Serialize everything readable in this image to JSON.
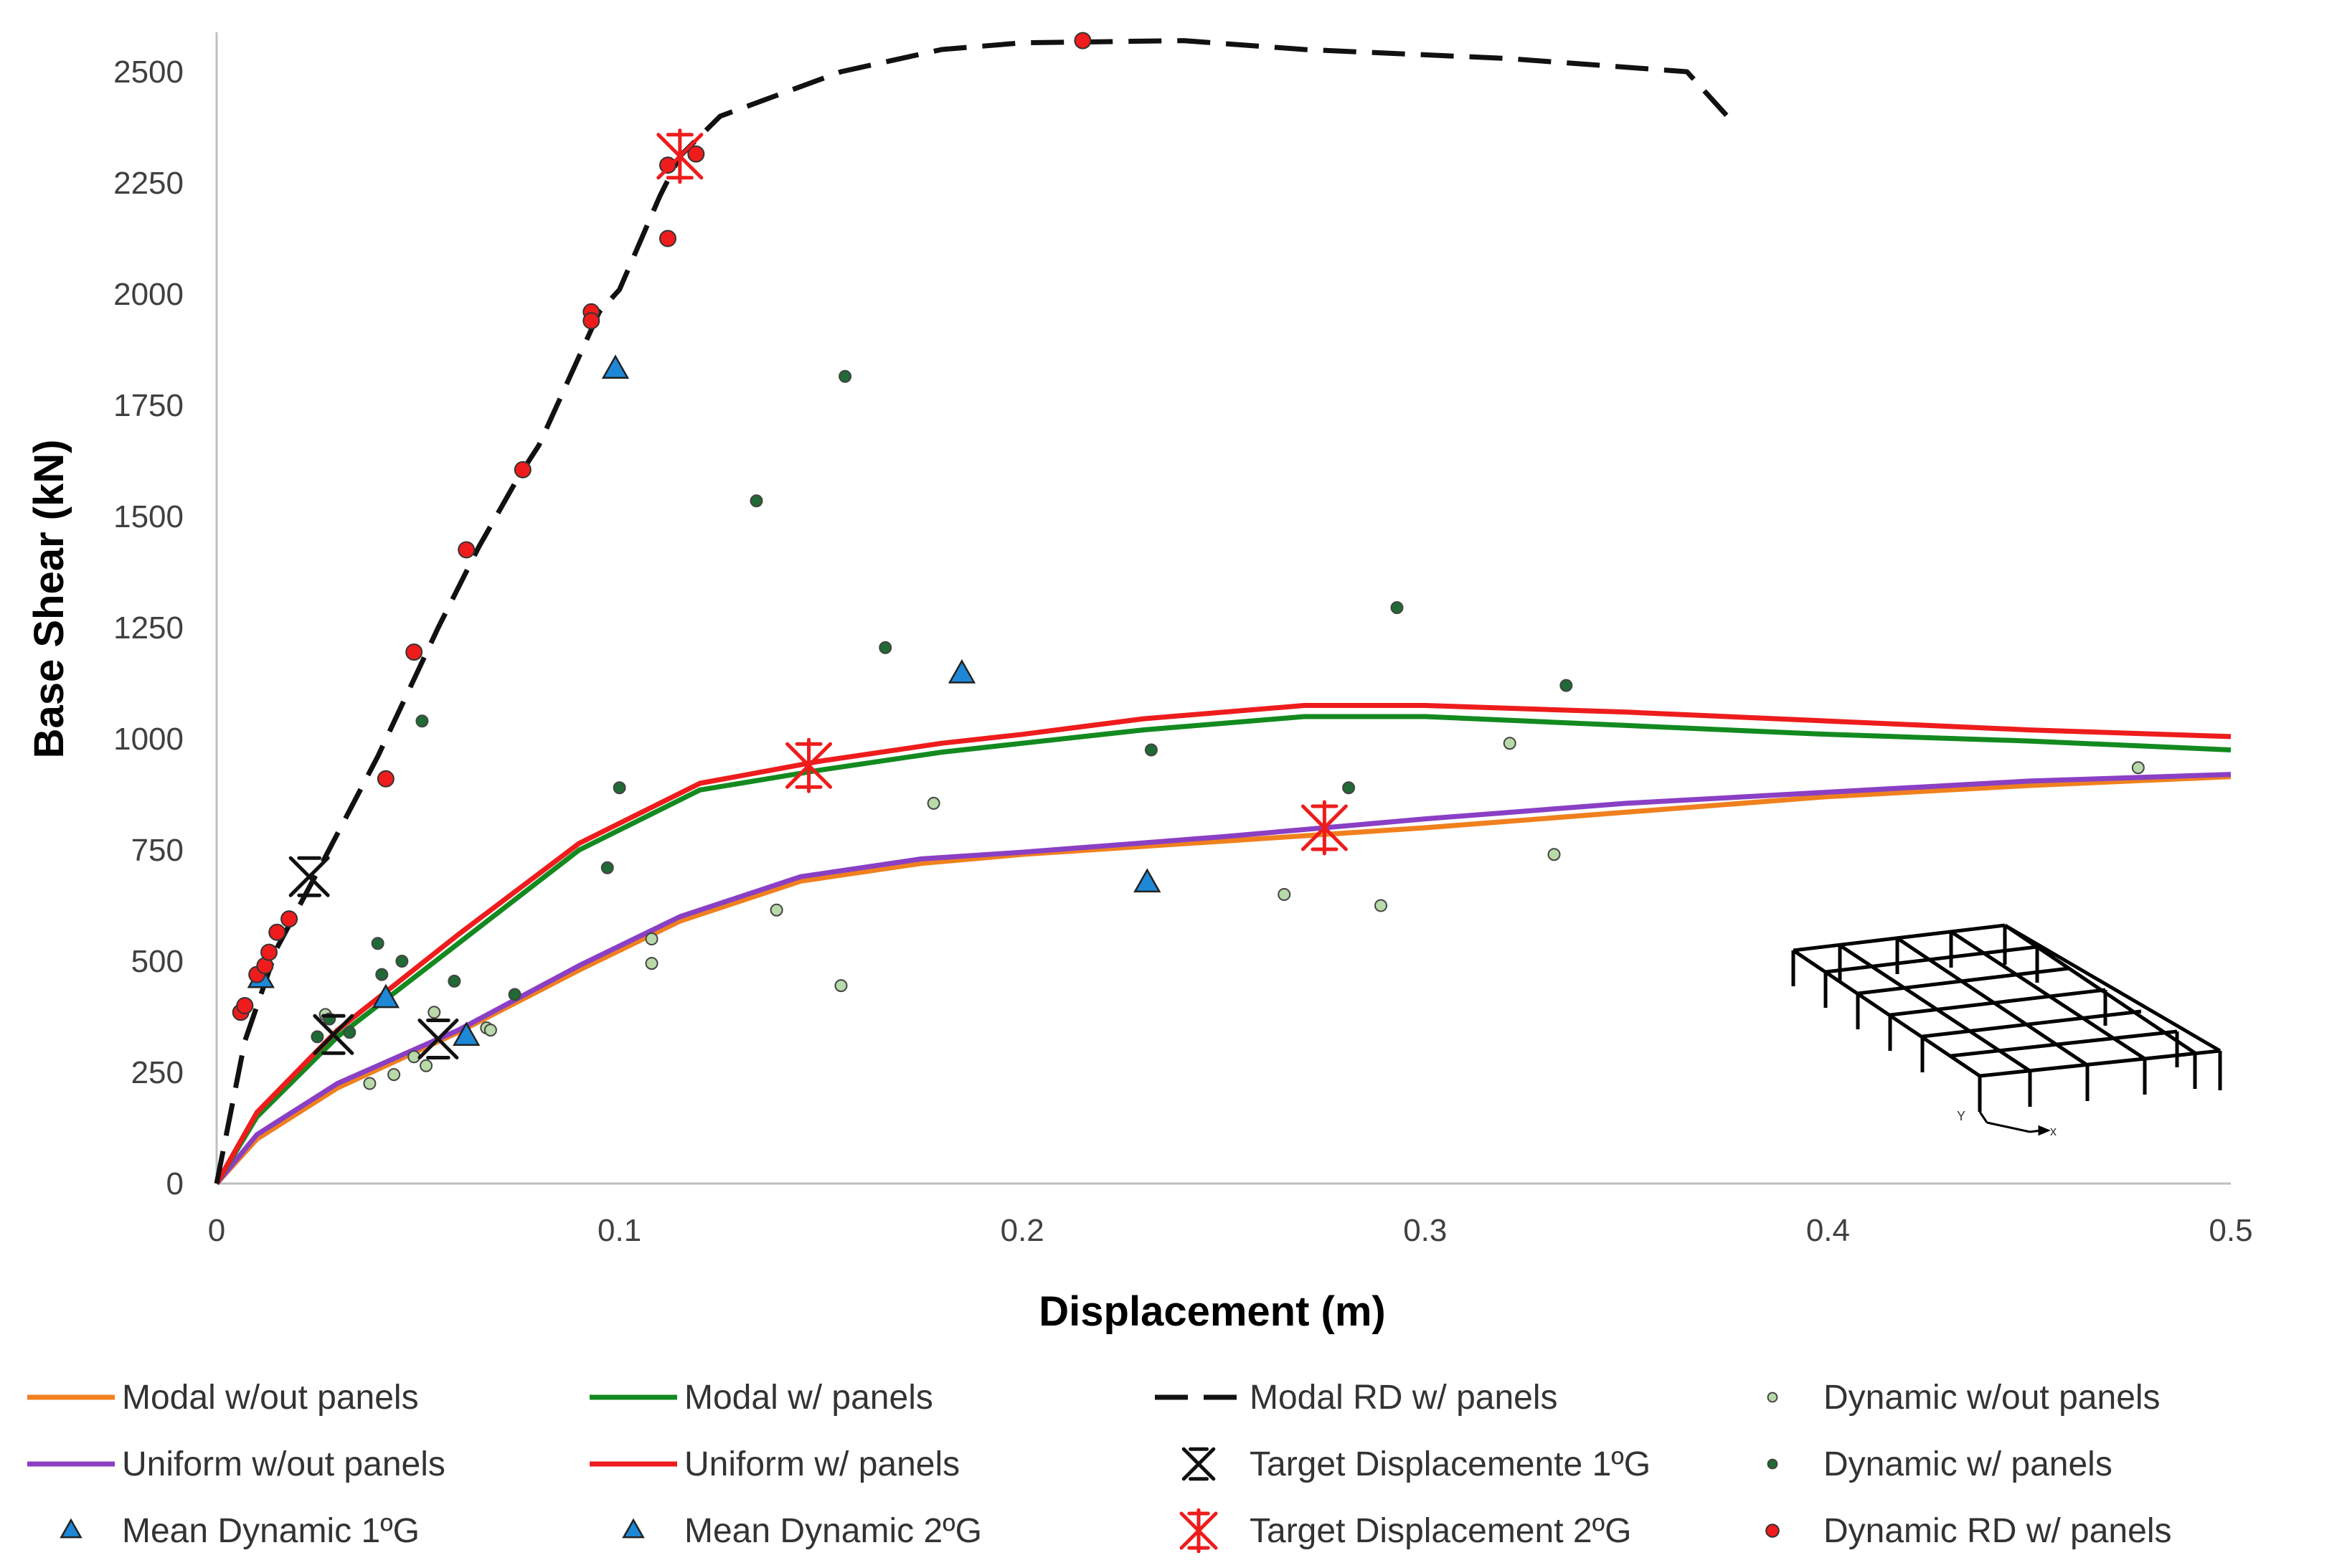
{
  "colors": {
    "orange": "#f0801e",
    "green": "#138a1f",
    "black": "#111111",
    "red": "#ee1c1c",
    "purple": "#8a3fc4",
    "blue": "#1e88d6",
    "light_green": "#b8d9a8",
    "dark_green": "#1f6a35"
  },
  "icons": [
    "structure-frame-icon"
  ],
  "chart_data": {
    "type": "line",
    "title": "",
    "xlabel": "Displacement (m)",
    "ylabel": "Base Shear (kN)",
    "xlim": [
      0,
      0.5
    ],
    "ylim": [
      0,
      2500
    ],
    "xticks": [
      0,
      0.1,
      0.2,
      0.3,
      0.4,
      0.5
    ],
    "xtick_labels": [
      "0",
      "0.1",
      "0.2",
      "0.3",
      "0.4",
      "0.5"
    ],
    "yticks": [
      0,
      250,
      500,
      750,
      1000,
      1250,
      1500,
      1750,
      2000,
      2250,
      2500
    ],
    "ytick_labels": [
      "0",
      "250",
      "500",
      "750",
      "1000",
      "1250",
      "1500",
      "1750",
      "2000",
      "2250",
      "2500"
    ],
    "grid": false,
    "legend_position": "bottom",
    "series": [
      {
        "id": "modal-wout",
        "name": "Modal w/out panels",
        "kind": "line",
        "color": "orange",
        "x": [
          0,
          0.01,
          0.03,
          0.06,
          0.09,
          0.115,
          0.145,
          0.175,
          0.2,
          0.25,
          0.3,
          0.35,
          0.4,
          0.45,
          0.5
        ],
        "y": [
          0,
          100,
          215,
          340,
          480,
          590,
          680,
          720,
          740,
          770,
          800,
          835,
          870,
          895,
          915
        ]
      },
      {
        "id": "uniform-wout",
        "name": "Uniform w/out panels",
        "kind": "line",
        "color": "purple",
        "x": [
          0,
          0.01,
          0.03,
          0.06,
          0.09,
          0.115,
          0.145,
          0.175,
          0.2,
          0.25,
          0.3,
          0.35,
          0.4,
          0.45,
          0.5
        ],
        "y": [
          0,
          110,
          225,
          345,
          490,
          600,
          690,
          730,
          745,
          780,
          820,
          855,
          880,
          905,
          920
        ]
      },
      {
        "id": "modal-w",
        "name": "Modal w/ panels",
        "kind": "line",
        "color": "green",
        "x": [
          0,
          0.01,
          0.03,
          0.06,
          0.09,
          0.12,
          0.15,
          0.18,
          0.2,
          0.23,
          0.27,
          0.3,
          0.35,
          0.4,
          0.45,
          0.5
        ],
        "y": [
          0,
          150,
          330,
          540,
          750,
          885,
          930,
          970,
          990,
          1020,
          1050,
          1050,
          1030,
          1010,
          995,
          975
        ]
      },
      {
        "id": "uniform-w",
        "name": "Uniform w/ panels",
        "kind": "line",
        "color": "red",
        "x": [
          0,
          0.01,
          0.03,
          0.06,
          0.09,
          0.12,
          0.15,
          0.18,
          0.2,
          0.23,
          0.27,
          0.3,
          0.35,
          0.4,
          0.45,
          0.5
        ],
        "y": [
          0,
          160,
          345,
          560,
          765,
          900,
          950,
          990,
          1010,
          1045,
          1075,
          1075,
          1060,
          1040,
          1020,
          1005
        ]
      },
      {
        "id": "modal-rd",
        "name": "Modal RD w/ panels",
        "kind": "dashed",
        "color": "black",
        "x": [
          0,
          0.007,
          0.015,
          0.025,
          0.04,
          0.055,
          0.065,
          0.075,
          0.08,
          0.09,
          0.095,
          0.1,
          0.11,
          0.115,
          0.125,
          0.14,
          0.155,
          0.18,
          0.2,
          0.24,
          0.27,
          0.32,
          0.365,
          0.375
        ],
        "y": [
          0,
          320,
          530,
          700,
          960,
          1250,
          1430,
          1590,
          1660,
          1860,
          1960,
          2010,
          2220,
          2310,
          2400,
          2450,
          2500,
          2550,
          2565,
          2570,
          2550,
          2530,
          2500,
          2400
        ]
      },
      {
        "id": "target-1g",
        "name": "Target Displacemente 1ºG",
        "kind": "marker-x",
        "color": "black",
        "x": [
          0.023,
          0.029,
          0.055
        ],
        "y": [
          690,
          335,
          325
        ]
      },
      {
        "id": "target-2g",
        "name": "Target Displacement 2ºG",
        "kind": "marker-star",
        "color": "red",
        "x": [
          0.115,
          0.147,
          0.275
        ],
        "y": [
          2310,
          940,
          800
        ]
      },
      {
        "id": "mean-1g",
        "name": "Mean Dynamic 1ºG",
        "kind": "triangle",
        "color": "blue",
        "x": [
          0.011,
          0.042,
          0.062
        ],
        "y": [
          460,
          415,
          330
        ]
      },
      {
        "id": "mean-2g",
        "name": "Mean Dynamic 2ºG",
        "kind": "triangle",
        "color": "blue",
        "x": [
          0.099,
          0.185,
          0.231
        ],
        "y": [
          1830,
          1145,
          675
        ]
      },
      {
        "id": "dyn-wout",
        "name": "Dynamic w/out panels",
        "kind": "dot-small",
        "color": "light_green",
        "x": [
          0.027,
          0.038,
          0.044,
          0.049,
          0.052,
          0.054,
          0.067,
          0.068,
          0.108,
          0.108,
          0.139,
          0.155,
          0.178,
          0.265,
          0.289,
          0.321,
          0.332,
          0.477
        ],
        "y": [
          380,
          225,
          245,
          285,
          265,
          385,
          350,
          345,
          550,
          495,
          615,
          445,
          855,
          650,
          625,
          990,
          740,
          935
        ]
      },
      {
        "id": "dyn-w",
        "name": "Dynamic w/ panels",
        "kind": "dot-small",
        "color": "dark_green",
        "x": [
          0.025,
          0.028,
          0.033,
          0.04,
          0.041,
          0.046,
          0.051,
          0.059,
          0.074,
          0.097,
          0.1,
          0.134,
          0.156,
          0.166,
          0.232,
          0.281,
          0.293,
          0.335
        ],
        "y": [
          330,
          370,
          340,
          540,
          470,
          500,
          1040,
          455,
          425,
          710,
          890,
          1535,
          1815,
          1205,
          975,
          890,
          1295,
          1120
        ]
      },
      {
        "id": "dyn-rd",
        "name": "Dynamic RD w/ panels",
        "kind": "dot-large",
        "color": "red",
        "x": [
          0.006,
          0.007,
          0.01,
          0.012,
          0.013,
          0.015,
          0.018,
          0.042,
          0.049,
          0.062,
          0.076,
          0.093,
          0.093,
          0.112,
          0.112,
          0.119,
          0.215
        ],
        "y": [
          385,
          400,
          470,
          490,
          520,
          565,
          595,
          910,
          1195,
          1425,
          1605,
          1960,
          1940,
          2125,
          2290,
          2315,
          2570
        ]
      }
    ],
    "legend_rows": [
      [
        "modal-wout",
        "modal-w",
        "modal-rd",
        "dyn-wout"
      ],
      [
        "uniform-wout",
        "uniform-w",
        "target-1g",
        "dyn-w"
      ],
      [
        "mean-1g",
        "mean-2g",
        "target-2g",
        "dyn-rd"
      ]
    ]
  }
}
